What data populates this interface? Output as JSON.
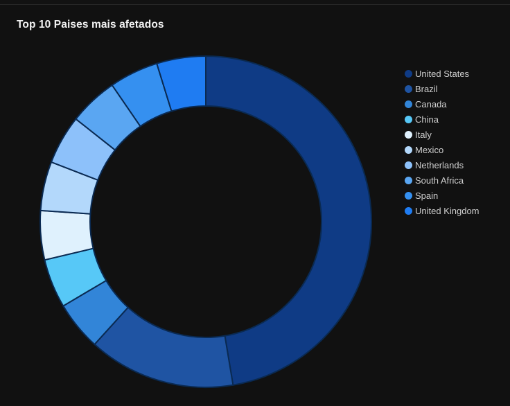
{
  "chart_data": {
    "type": "pie",
    "title": "Top 10 Paises mais afetados",
    "donut": true,
    "legend_position": "right",
    "categories": [
      "United States",
      "Brazil",
      "Canada",
      "China",
      "Italy",
      "Mexico",
      "Netherlands",
      "South Africa",
      "Spain",
      "United Kingdom"
    ],
    "values": [
      49.5,
      15.0,
      5.0,
      5.0,
      5.0,
      5.0,
      5.0,
      5.0,
      5.0,
      5.0
    ],
    "colors": [
      "#0f3b85",
      "#1f54a3",
      "#3285d8",
      "#57c8f7",
      "#dff1fd",
      "#b3d8fb",
      "#8dc1fa",
      "#5aa6f2",
      "#3590f0",
      "#1f7cf2"
    ]
  }
}
